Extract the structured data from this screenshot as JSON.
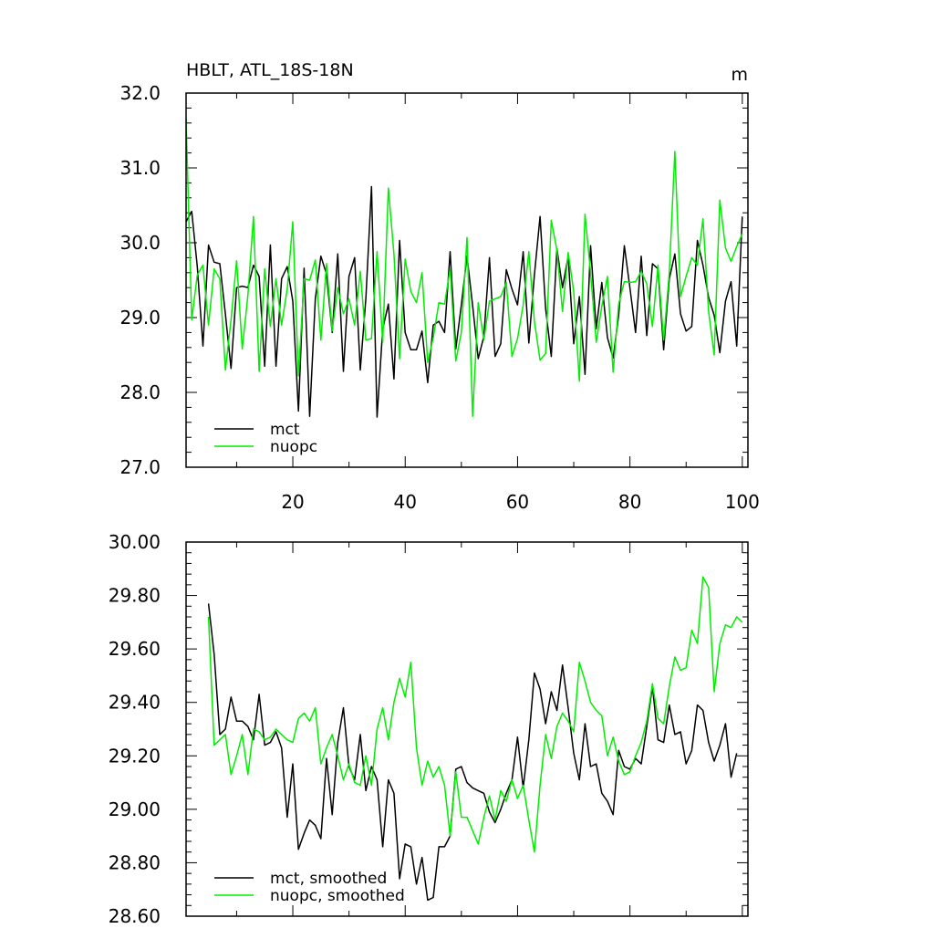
{
  "chart_data": [
    {
      "type": "line",
      "title": "HBLT, ATL_18S-18N",
      "units": "m",
      "xlim": [
        1,
        101
      ],
      "ylim": [
        27.0,
        32.0
      ],
      "x_ticks": [
        20,
        40,
        60,
        80,
        100
      ],
      "x_tick_labels": [
        "20",
        "40",
        "60",
        "80",
        "100"
      ],
      "y_ticks": [
        27.0,
        28.0,
        29.0,
        30.0,
        31.0,
        32.0
      ],
      "y_tick_labels": [
        "27.0",
        "28.0",
        "29.0",
        "30.0",
        "31.0",
        "32.0"
      ],
      "legend": "bottom-left",
      "series": [
        {
          "name": "mct",
          "color": "#000000",
          "values": [
            30.28,
            30.42,
            29.68,
            28.62,
            29.97,
            29.74,
            29.72,
            29.05,
            28.32,
            29.4,
            29.42,
            29.4,
            29.7,
            29.55,
            28.35,
            29.97,
            28.35,
            29.52,
            29.68,
            29.22,
            27.75,
            29.66,
            27.68,
            29.25,
            29.82,
            29.58,
            28.8,
            29.85,
            28.28,
            29.55,
            29.8,
            28.3,
            29.25,
            30.75,
            27.67,
            28.85,
            29.18,
            28.18,
            30.03,
            28.8,
            28.57,
            28.57,
            28.82,
            28.13,
            28.9,
            28.95,
            28.8,
            29.88,
            28.58,
            29.17,
            29.82,
            29.16,
            28.45,
            28.75,
            29.8,
            28.48,
            28.65,
            29.64,
            29.38,
            29.17,
            29.88,
            28.66,
            29.57,
            30.35,
            29.12,
            28.48,
            29.92,
            29.4,
            29.82,
            28.65,
            29.28,
            28.24,
            29.96,
            28.85,
            29.47,
            28.73,
            28.46,
            29.03,
            29.96,
            29.4,
            28.8,
            29.82,
            28.76,
            29.72,
            29.65,
            28.57,
            29.52,
            29.85,
            29.05,
            28.82,
            28.88,
            30.03,
            29.7,
            29.27,
            29.03,
            28.53,
            29.22,
            29.48,
            28.62,
            30.35
          ]
        },
        {
          "name": "nuopc",
          "color": "#00ee00",
          "values": [
            31.65,
            28.97,
            29.57,
            29.7,
            28.9,
            29.65,
            29.52,
            28.3,
            28.97,
            29.76,
            28.58,
            29.3,
            30.35,
            28.28,
            29.65,
            28.88,
            29.52,
            28.9,
            29.38,
            30.28,
            28.22,
            29.52,
            29.5,
            29.77,
            28.7,
            29.72,
            28.82,
            29.4,
            29.05,
            29.25,
            28.9,
            29.62,
            28.7,
            28.72,
            29.88,
            28.67,
            30.73,
            29.85,
            28.45,
            29.78,
            29.35,
            29.2,
            29.6,
            28.4,
            28.73,
            29.2,
            29.18,
            29.65,
            28.42,
            28.8,
            30.07,
            27.68,
            29.2,
            28.7,
            29.22,
            29.25,
            29.28,
            29.47,
            28.48,
            28.72,
            29.17,
            29.88,
            28.95,
            28.43,
            28.52,
            30.3,
            29.9,
            29.08,
            29.87,
            29.35,
            28.15,
            30.38,
            29.6,
            28.67,
            29.15,
            29.55,
            28.27,
            29.18,
            29.48,
            29.47,
            29.48,
            29.62,
            29.45,
            28.88,
            29.7,
            28.7,
            29.6,
            31.22,
            29.28,
            29.55,
            29.8,
            29.7,
            30.32,
            29.08,
            28.5,
            30.57,
            29.93,
            29.75,
            29.95,
            30.12
          ]
        }
      ]
    },
    {
      "type": "line",
      "xlim": [
        1,
        101
      ],
      "ylim": [
        28.6,
        30.0
      ],
      "x_ticks": [
        20,
        40,
        60,
        80,
        100
      ],
      "y_ticks": [
        28.6,
        28.8,
        29.0,
        29.2,
        29.4,
        29.6,
        29.8,
        30.0
      ],
      "y_tick_labels": [
        "28.60",
        "28.80",
        "29.00",
        "29.20",
        "29.40",
        "29.60",
        "29.80",
        "30.00"
      ],
      "legend": "bottom-left",
      "series": [
        {
          "name": "mct, smoothed",
          "color": "#000000",
          "x_start": 5,
          "values": [
            29.77,
            29.58,
            29.28,
            29.3,
            29.42,
            29.33,
            29.33,
            29.31,
            29.26,
            29.43,
            29.24,
            29.25,
            29.29,
            29.23,
            28.97,
            29.17,
            28.85,
            28.91,
            28.96,
            28.94,
            28.89,
            29.19,
            28.98,
            29.25,
            29.38,
            29.16,
            29.11,
            29.28,
            29.07,
            29.16,
            29.11,
            28.86,
            29.11,
            29.06,
            28.74,
            28.87,
            28.86,
            28.72,
            28.82,
            28.66,
            28.67,
            28.86,
            28.86,
            28.9,
            29.15,
            29.16,
            29.1,
            29.08,
            29.07,
            29.06,
            28.99,
            28.95,
            29.0,
            29.06,
            29.11,
            29.27,
            29.08,
            29.26,
            29.51,
            29.45,
            29.32,
            29.44,
            29.37,
            29.54,
            29.38,
            29.21,
            29.11,
            29.32,
            29.16,
            29.17,
            29.06,
            29.03,
            28.98,
            29.22,
            29.16,
            29.15,
            29.19,
            29.17,
            29.31,
            29.46,
            29.26,
            29.25,
            29.39,
            29.28,
            29.29,
            29.17,
            29.22,
            29.39,
            29.37,
            29.25,
            29.18,
            29.24,
            29.32,
            29.12,
            29.21
          ]
        },
        {
          "name": "nuopc, smoothed",
          "color": "#00ee00",
          "x_start": 5,
          "values": [
            29.72,
            29.24,
            29.26,
            29.28,
            29.13,
            29.2,
            29.28,
            29.13,
            29.3,
            29.29,
            29.26,
            29.27,
            29.3,
            29.28,
            29.26,
            29.25,
            29.34,
            29.36,
            29.33,
            29.38,
            29.17,
            29.23,
            29.28,
            29.2,
            29.11,
            29.17,
            29.1,
            29.09,
            29.2,
            29.09,
            29.3,
            29.38,
            29.26,
            29.4,
            29.49,
            29.42,
            29.55,
            29.23,
            29.09,
            29.18,
            29.12,
            29.16,
            29.09,
            28.9,
            29.14,
            28.97,
            28.97,
            28.92,
            28.87,
            28.97,
            29.05,
            28.96,
            29.07,
            29.03,
            29.11,
            29.04,
            29.09,
            28.96,
            28.84,
            29.09,
            29.28,
            29.19,
            29.31,
            29.36,
            29.33,
            29.29,
            29.55,
            29.48,
            29.4,
            29.37,
            29.35,
            29.2,
            29.27,
            29.18,
            29.13,
            29.14,
            29.2,
            29.25,
            29.33,
            29.47,
            29.34,
            29.32,
            29.46,
            29.57,
            29.52,
            29.53,
            29.67,
            29.62,
            29.87,
            29.83,
            29.44,
            29.62,
            29.69,
            29.68,
            29.72,
            29.7
          ]
        }
      ]
    }
  ]
}
